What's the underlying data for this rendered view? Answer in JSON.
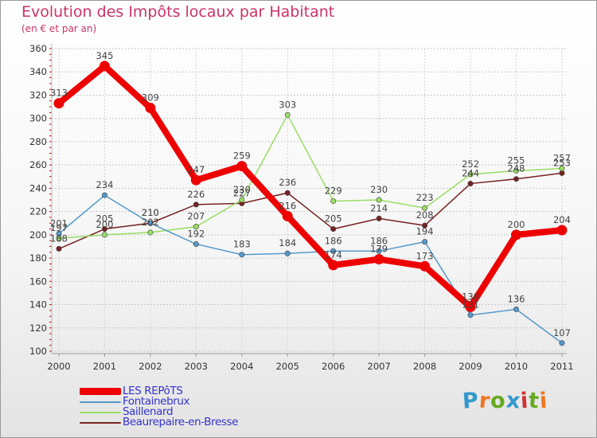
{
  "header": {
    "title": "Evolution des Impôts locaux par Habitant",
    "subtitle": "(en € et par an)"
  },
  "logo": {
    "text": "Proxiti",
    "colors": [
      "#3399cc",
      "#ee7722",
      "#66aa22",
      "#3399cc",
      "#cc3333",
      "#66aa22",
      "#ee7722"
    ]
  },
  "chart_data": {
    "type": "line",
    "categories": [
      "2000",
      "2001",
      "2002",
      "2003",
      "2004",
      "2005",
      "2006",
      "2007",
      "2008",
      "2009",
      "2010",
      "2011"
    ],
    "ylim": [
      100,
      360
    ],
    "yticks": [
      "100",
      "120",
      "140",
      "160",
      "180",
      "200",
      "220",
      "240",
      "260",
      "280",
      "300",
      "320",
      "340",
      "360"
    ],
    "grid": "horizontal dashed",
    "legend_position": "bottom-left",
    "series": [
      {
        "name": "LES REPôTS",
        "color": "#ee0000",
        "values": [
          313,
          345,
          309,
          247,
          259,
          216,
          174,
          179,
          173,
          138,
          200,
          204
        ]
      },
      {
        "name": "Fontainebrux",
        "color": "#5599cc",
        "values": [
          201,
          234,
          210,
          192,
          183,
          184,
          186,
          186,
          194,
          131,
          136,
          107
        ]
      },
      {
        "name": "Saillenard",
        "color": "#99dd66",
        "values": [
          197,
          200,
          202,
          207,
          230,
          303,
          229,
          230,
          223,
          252,
          255,
          257
        ]
      },
      {
        "name": "Beaurepaire-en-Bresse",
        "color": "#772222",
        "values": [
          188,
          205,
          210,
          226,
          227,
          236,
          205,
          214,
          208,
          244,
          248,
          253
        ]
      }
    ]
  }
}
